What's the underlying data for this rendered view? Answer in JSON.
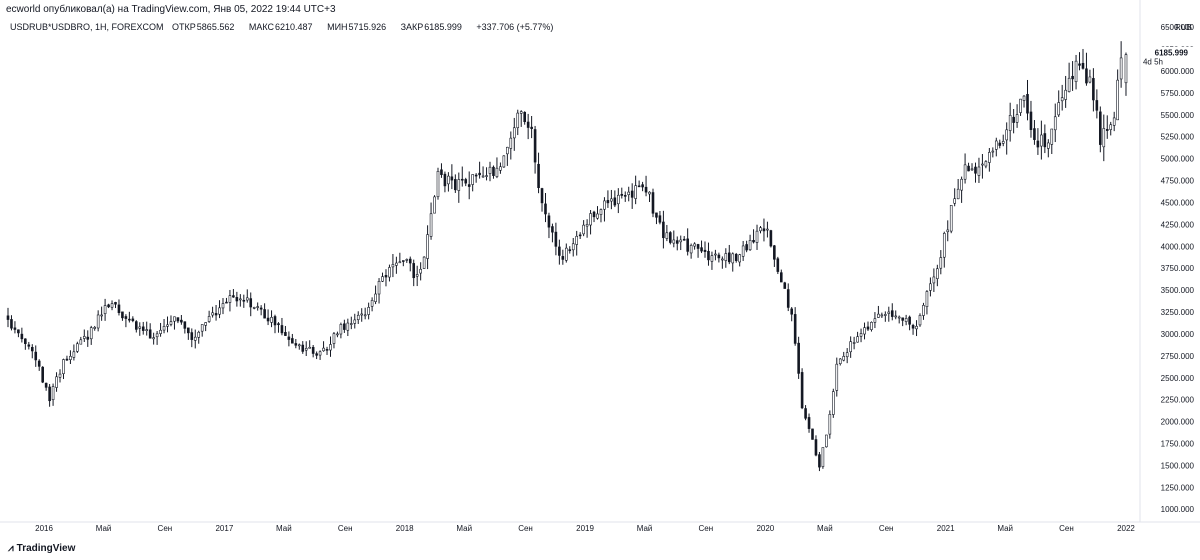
{
  "header": {
    "published": "ecworld опубликовал(а) на TradingView.com, Янв 05, 2022 19:44 UTC+3"
  },
  "legend": {
    "symbol": "USDRUB*USDBRO, 1Н, FOREXCOM",
    "open_label": "ОТКР",
    "open": "5865.562",
    "high_label": "МАКС",
    "high": "6210.487",
    "low_label": "МИН",
    "low": "5715.926",
    "close_label": "ЗАКР",
    "close": "6185.999",
    "change": "+337.706 (+5.77%)"
  },
  "price_scale": {
    "currency": "RUB",
    "last_price": "6185.999",
    "countdown": "4d 5h"
  },
  "footer": {
    "brand": "TradingView"
  },
  "chart_data": {
    "type": "candlestick",
    "title": "",
    "ylim": [
      900,
      6650
    ],
    "y_ticks": [
      1000,
      1250,
      1500,
      1750,
      2000,
      2250,
      2500,
      2750,
      3000,
      3250,
      3500,
      3750,
      4000,
      4250,
      4500,
      4750,
      5000,
      5250,
      5500,
      5750,
      6000,
      6250,
      6500
    ],
    "y_tick_labels": [
      "1000.000",
      "1250.000",
      "1500.000",
      "1750.000",
      "2000.000",
      "2250.000",
      "2500.000",
      "2750.000",
      "3000.000",
      "3250.000",
      "3500.000",
      "3750.000",
      "4000.000",
      "4250.000",
      "4500.000",
      "4750.000",
      "5000.000",
      "5250.000",
      "5500.000",
      "5750.000",
      "6000.000",
      "6250.000",
      "6500.000"
    ],
    "x_ticks": [
      {
        "t": 2016.0,
        "label": "2016"
      },
      {
        "t": 2016.33,
        "label": "Май"
      },
      {
        "t": 2016.67,
        "label": "Сен"
      },
      {
        "t": 2017.0,
        "label": "2017"
      },
      {
        "t": 2017.33,
        "label": "Май"
      },
      {
        "t": 2017.67,
        "label": "Сен"
      },
      {
        "t": 2018.0,
        "label": "2018"
      },
      {
        "t": 2018.33,
        "label": "Май"
      },
      {
        "t": 2018.67,
        "label": "Сен"
      },
      {
        "t": 2019.0,
        "label": "2019"
      },
      {
        "t": 2019.33,
        "label": "Май"
      },
      {
        "t": 2019.67,
        "label": "Сен"
      },
      {
        "t": 2020.0,
        "label": "2020"
      },
      {
        "t": 2020.33,
        "label": "Май"
      },
      {
        "t": 2020.67,
        "label": "Сен"
      },
      {
        "t": 2021.0,
        "label": "2021"
      },
      {
        "t": 2021.33,
        "label": "Май"
      },
      {
        "t": 2021.67,
        "label": "Сен"
      },
      {
        "t": 2022.0,
        "label": "2022"
      }
    ],
    "x_range": [
      2015.8,
      2022.05
    ],
    "anchors": [
      [
        2015.8,
        3200
      ],
      [
        2015.95,
        2850
      ],
      [
        2016.05,
        2250
      ],
      [
        2016.12,
        2650
      ],
      [
        2016.25,
        2950
      ],
      [
        2016.38,
        3350
      ],
      [
        2016.5,
        3150
      ],
      [
        2016.62,
        2950
      ],
      [
        2016.75,
        3200
      ],
      [
        2016.85,
        2950
      ],
      [
        2016.95,
        3200
      ],
      [
        2017.05,
        3450
      ],
      [
        2017.15,
        3350
      ],
      [
        2017.3,
        3150
      ],
      [
        2017.4,
        2900
      ],
      [
        2017.55,
        2750
      ],
      [
        2017.65,
        3050
      ],
      [
        2017.8,
        3200
      ],
      [
        2017.9,
        3650
      ],
      [
        2018.0,
        3900
      ],
      [
        2018.1,
        3600
      ],
      [
        2018.2,
        4800
      ],
      [
        2018.3,
        4700
      ],
      [
        2018.45,
        4800
      ],
      [
        2018.55,
        4900
      ],
      [
        2018.65,
        5500
      ],
      [
        2018.72,
        5300
      ],
      [
        2018.78,
        4500
      ],
      [
        2018.88,
        3850
      ],
      [
        2018.98,
        4100
      ],
      [
        2019.05,
        4300
      ],
      [
        2019.15,
        4500
      ],
      [
        2019.25,
        4600
      ],
      [
        2019.35,
        4700
      ],
      [
        2019.45,
        4150
      ],
      [
        2019.6,
        4000
      ],
      [
        2019.7,
        3900
      ],
      [
        2019.85,
        3850
      ],
      [
        2019.95,
        4100
      ],
      [
        2020.03,
        4200
      ],
      [
        2020.1,
        3650
      ],
      [
        2020.17,
        3150
      ],
      [
        2020.22,
        2200
      ],
      [
        2020.25,
        2000
      ],
      [
        2020.32,
        1500
      ],
      [
        2020.37,
        2000
      ],
      [
        2020.42,
        2700
      ],
      [
        2020.55,
        3000
      ],
      [
        2020.65,
        3200
      ],
      [
        2020.75,
        3200
      ],
      [
        2020.85,
        3100
      ],
      [
        2020.95,
        3600
      ],
      [
        2021.05,
        4400
      ],
      [
        2021.13,
        4950
      ],
      [
        2021.2,
        4900
      ],
      [
        2021.35,
        5300
      ],
      [
        2021.45,
        5700
      ],
      [
        2021.52,
        5200
      ],
      [
        2021.6,
        5200
      ],
      [
        2021.67,
        5800
      ],
      [
        2021.75,
        6100
      ],
      [
        2021.82,
        5900
      ],
      [
        2021.88,
        5200
      ],
      [
        2021.95,
        5500
      ],
      [
        2022.0,
        6186
      ]
    ],
    "last_candle": {
      "open": 5865.562,
      "high": 6210.487,
      "low": 5715.926,
      "close": 6185.999
    }
  }
}
